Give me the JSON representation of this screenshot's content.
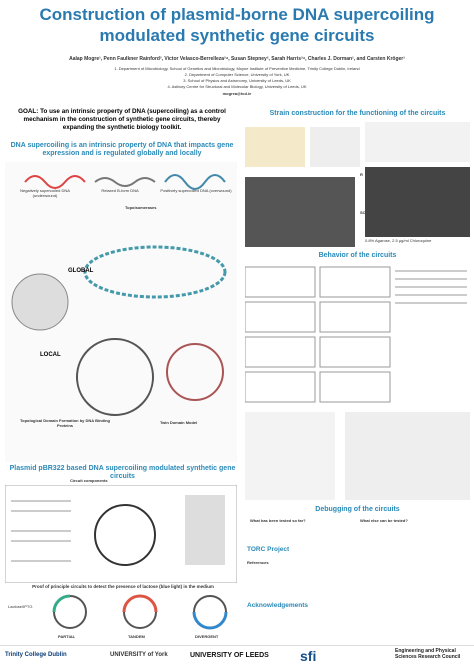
{
  "header": {
    "title": "Construction of plasmid-borne DNA supercoiling modulated synthetic gene circuits",
    "authors": "Aalap Mogre¹, Penn Faulkner Rainford², Victor Velasco-Berrelleza³⁴, Susan Stepney², Sarah Harris³⁴, Charles J. Dorman¹, and Carsten Kröger¹",
    "affiliations": [
      "1. Department of Microbiology, School of Genetics and Microbiology, Moyne Institute of Preventive Medicine, Trinity College Dublin, Ireland",
      "2. Department of Computer Science, University of York, UK",
      "3. School of Physics and Astronomy, University of Leeds, UK",
      "4. Astbury Centre for Structural and Molecular Biology, University of Leeds, UK"
    ],
    "email": "mogrea@tcd.ie"
  },
  "goal": "GOAL: To use an intrinsic property of DNA (supercoiling) as a control mechanism in the construction of synthetic gene circuits, thereby expanding the synthetic biology toolkit.",
  "intro": {
    "heading": "DNA supercoiling is an intrinsic property of DNA that impacts gene expression and is regulated globally and locally",
    "labels": [
      "Negatively supercoiled DNA (underwound)",
      "Relaxed B-form DNA",
      "Positively supercoiled DNA (overwound)",
      "Topoisomerases",
      "GLOBAL",
      "LOCAL",
      "Topological Domain Formation by DNA Binding Proteins",
      "Twin Domain Model"
    ]
  },
  "strain": {
    "heading": "Strain construction for the functioning of the circuits",
    "gel_note": "0.8% Agarose, 2.5 µg/ml Chloroquine",
    "gel_labels": [
      "R",
      "SC"
    ]
  },
  "behavior": {
    "heading": "Behavior of the circuits"
  },
  "plasmid": {
    "heading": "Plasmid pBR322 based DNA supercoiling modulated synthetic gene circuits",
    "components": "Circuit components",
    "proof": "Proof of principle circuits to detect the presence of lactose (blue light) in the medium",
    "inducer": "Lactose/IPTG",
    "circuits": [
      "PARTIAL",
      "TANDEM",
      "DIVERGENT"
    ]
  },
  "debugging": {
    "heading": "Debugging of the circuits",
    "tested": "What has been tested so far?",
    "untested": "What else can be tested?"
  },
  "torc": {
    "heading": "TORC Project"
  },
  "references": {
    "heading": "References"
  },
  "acknowledgements": {
    "heading": "Acknowledgements"
  },
  "logos": [
    "Trinity College Dublin",
    "UNIVERSITY of York",
    "UNIVERSITY OF LEEDS",
    "sfi",
    "Engineering and Physical Sciences Research Council"
  ]
}
